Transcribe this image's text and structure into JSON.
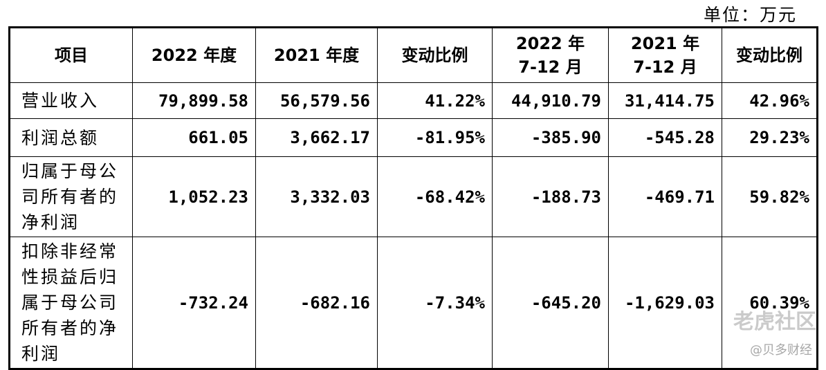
{
  "unit": "单位：万元",
  "table": {
    "header": [
      "项目",
      "2022 年度",
      "2021 年度",
      "变动比例",
      [
        "2022 年",
        "7-12 月"
      ],
      [
        "2021 年",
        "7-12 月"
      ],
      "变动比例"
    ],
    "rows": [
      [
        "营业收入",
        "79,899.58",
        "56,579.56",
        "41.22%",
        "44,910.79",
        "31,414.75",
        "42.96%"
      ],
      [
        "利润总额",
        "661.05",
        "3,662.17",
        "-81.95%",
        "-385.90",
        "-545.28",
        "29.23%"
      ],
      [
        "归属于母公司所有者的净利润",
        "1,052.23",
        "3,332.03",
        "-68.42%",
        "-188.73",
        "-469.71",
        "59.82%"
      ],
      [
        "扣除非经常性损益后归属于母公司所有者的净利润",
        "-732.24",
        "-682.16",
        "-7.34%",
        "-645.20",
        "-1,629.03",
        "60.39%"
      ]
    ]
  },
  "watermark": {
    "brand": "老虎社区",
    "source": "@贝多财经"
  }
}
